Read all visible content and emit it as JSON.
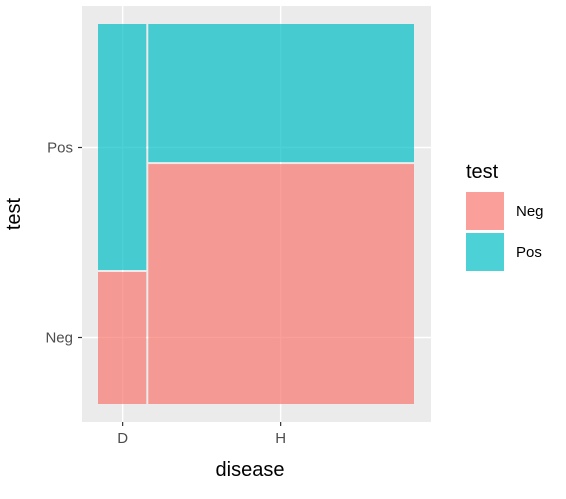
{
  "chart_data": {
    "type": "mosaic",
    "xlabel": "disease",
    "ylabel": "test",
    "x_categories": [
      "D",
      "H"
    ],
    "y_categories": [
      "Neg",
      "Pos"
    ],
    "x_widths": [
      0.156,
      0.844
    ],
    "series": [
      {
        "name": "Neg",
        "values": [
          0.35,
          0.634
        ],
        "color": "#F8766D"
      },
      {
        "name": "Pos",
        "values": [
          0.65,
          0.366
        ],
        "color": "#00BFC4"
      }
    ],
    "ylim": [
      0,
      1
    ],
    "grid": true,
    "legend": {
      "title": "test",
      "position": "right",
      "entries": [
        "Neg",
        "Pos"
      ]
    },
    "panel_background": "#EBEBEB"
  }
}
